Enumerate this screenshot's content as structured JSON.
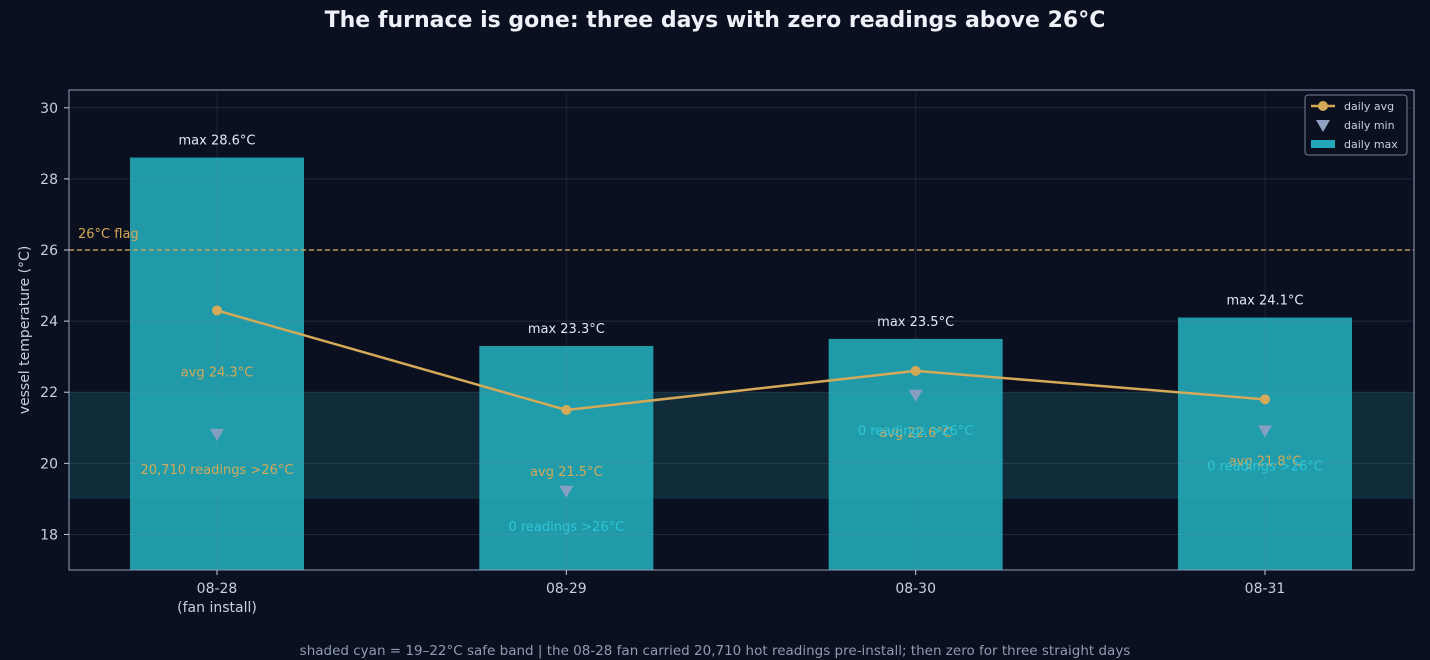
{
  "title": "The furnace is gone: three days with zero readings above 26°C",
  "footnote": "shaded cyan = 19–22°C safe band  |  the 08-28 fan carried 20,710 hot readings pre-install; then zero for three straight days",
  "colors": {
    "background": "#0b1020",
    "bar": "#22a8b8",
    "avg_line": "#d4a957",
    "min_marker": "#8fa0c2",
    "flag": "#d4a957",
    "band": "#123040",
    "text": "#c7d0df",
    "hot_count": "#d4a957",
    "zero_count": "#2ec6d8"
  },
  "chart_data": {
    "type": "bar",
    "title": "The furnace is gone: three days with zero readings above 26°C",
    "ylabel": "vessel temperature (°C)",
    "xlabel": "",
    "ylim": [
      17,
      30.5
    ],
    "yticks": [
      18,
      20,
      22,
      24,
      26,
      28,
      30
    ],
    "grid": true,
    "categories": [
      "08-28",
      "08-29",
      "08-30",
      "08-31"
    ],
    "category_sublabels": [
      "(fan install)",
      "",
      "",
      ""
    ],
    "series": [
      {
        "name": "daily max",
        "kind": "bar",
        "values": [
          28.6,
          23.3,
          23.5,
          24.1
        ]
      },
      {
        "name": "daily avg",
        "kind": "line",
        "values": [
          24.3,
          21.5,
          22.6,
          21.8
        ]
      },
      {
        "name": "daily min",
        "kind": "marker",
        "values": [
          20.8,
          19.2,
          21.9,
          20.9
        ]
      }
    ],
    "bar_labels": [
      "max 28.6°C",
      "max 23.3°C",
      "max 23.5°C",
      "max 24.1°C"
    ],
    "avg_labels": [
      "avg 24.3°C",
      "avg 21.5°C",
      "avg 22.6°C",
      "avg 21.8°C"
    ],
    "count_labels": [
      "20,710 readings >26°C",
      "0 readings >26°C",
      "0 readings >26°C",
      "0 readings >26°C"
    ],
    "hot_counts": [
      20710,
      0,
      0,
      0
    ],
    "reference_line": {
      "value": 26,
      "label": "26°C flag"
    },
    "band": {
      "from": 19,
      "to": 22
    },
    "legend": {
      "position": "top-right",
      "entries": [
        "daily avg",
        "daily min",
        "daily max"
      ]
    }
  }
}
